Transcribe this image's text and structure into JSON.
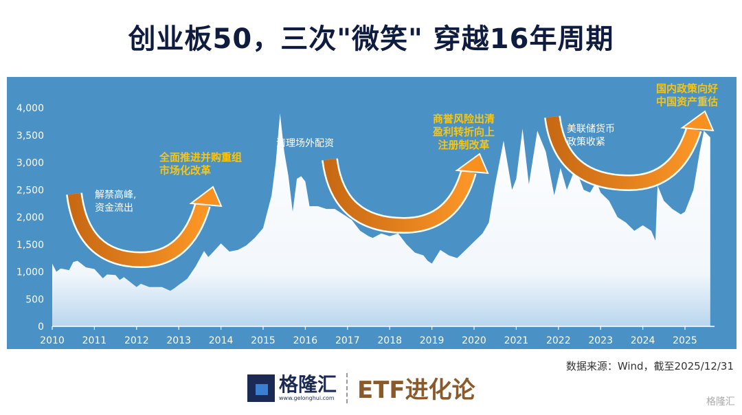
{
  "title": "创业板50，三次\"微笑\" 穿越16年周期",
  "chart_data": {
    "type": "area",
    "title": "创业板50，三次\"微笑\" 穿越16年周期",
    "xlabel": "",
    "ylabel": "",
    "xlim": [
      2010,
      2025.7
    ],
    "ylim": [
      0,
      4000
    ],
    "x_ticks": [
      "2010",
      "2011",
      "2012",
      "2013",
      "2014",
      "2015",
      "2016",
      "2017",
      "2018",
      "2019",
      "2020",
      "2021",
      "2022",
      "2023",
      "2024",
      "2025"
    ],
    "y_ticks": [
      "0",
      "500",
      "1,000",
      "1,500",
      "2,000",
      "2,500",
      "3,000",
      "3,500",
      "4,000"
    ],
    "grid": false,
    "colors": {
      "background": "#4a92c6",
      "area": "#ffffff",
      "arrow": "#f08a1c",
      "annotation_highlight": "#f5c518"
    },
    "x": [
      2010.0,
      2010.1,
      2010.2,
      2010.4,
      2010.5,
      2010.6,
      2010.8,
      2011.0,
      2011.2,
      2011.3,
      2011.5,
      2011.6,
      2011.7,
      2011.9,
      2012.0,
      2012.1,
      2012.3,
      2012.6,
      2012.8,
      2012.9,
      2013.0,
      2013.2,
      2013.4,
      2013.6,
      2013.7,
      2013.8,
      2014.0,
      2014.2,
      2014.4,
      2014.6,
      2014.8,
      2015.0,
      2015.2,
      2015.3,
      2015.4,
      2015.5,
      2015.6,
      2015.7,
      2015.8,
      2015.9,
      2016.0,
      2016.1,
      2016.3,
      2016.5,
      2016.7,
      2016.9,
      2017.1,
      2017.3,
      2017.5,
      2017.6,
      2017.8,
      2018.0,
      2018.2,
      2018.4,
      2018.6,
      2018.8,
      2018.9,
      2019.0,
      2019.2,
      2019.4,
      2019.6,
      2019.8,
      2020.0,
      2020.2,
      2020.35,
      2020.5,
      2020.7,
      2020.9,
      2021.0,
      2021.15,
      2021.3,
      2021.5,
      2021.7,
      2021.9,
      2022.05,
      2022.2,
      2022.4,
      2022.6,
      2022.75,
      2022.9,
      2023.0,
      2023.2,
      2023.4,
      2023.6,
      2023.8,
      2024.0,
      2024.2,
      2024.3,
      2024.35,
      2024.5,
      2024.7,
      2024.9,
      2025.0,
      2025.2,
      2025.35,
      2025.45,
      2025.6
    ],
    "values": [
      1150,
      1000,
      1060,
      1030,
      1180,
      1200,
      1080,
      1050,
      880,
      950,
      940,
      850,
      900,
      780,
      720,
      780,
      720,
      720,
      650,
      700,
      760,
      870,
      1100,
      1380,
      1270,
      1350,
      1520,
      1370,
      1400,
      1480,
      1620,
      1800,
      2400,
      3000,
      3900,
      3200,
      2750,
      2100,
      2700,
      2750,
      2650,
      2200,
      2200,
      2150,
      2150,
      2050,
      1950,
      1750,
      1650,
      1620,
      1700,
      1650,
      1700,
      1500,
      1350,
      1300,
      1200,
      1150,
      1400,
      1300,
      1250,
      1400,
      1550,
      1700,
      1900,
      2600,
      3400,
      2500,
      2700,
      3620,
      2600,
      3580,
      3200,
      2400,
      2900,
      2500,
      2900,
      2500,
      2450,
      2650,
      2450,
      2300,
      2000,
      1900,
      1750,
      1850,
      1750,
      1570,
      2580,
      2300,
      2150,
      2050,
      2100,
      2500,
      3200,
      3580,
      3460
    ],
    "annotations": [
      {
        "text_lines": [
          "解禁高峰,",
          "资金流出"
        ],
        "style": "normal"
      },
      {
        "text_lines": [
          "全面推进并购重组",
          "市场化改革"
        ],
        "style": "highlight"
      },
      {
        "text_lines": [
          "清理场外配资"
        ],
        "style": "normal"
      },
      {
        "text_lines": [
          "商誉风险出清",
          "盈利转折向上",
          "注册制改革"
        ],
        "style": "highlight"
      },
      {
        "text_lines": [
          "美联储货币",
          "政策收紧"
        ],
        "style": "normal"
      },
      {
        "text_lines": [
          "国内政策向好",
          "中国资产重估"
        ],
        "style": "highlight"
      }
    ]
  },
  "source": "数据来源：Wind，截至2025/12/31",
  "logo": {
    "brand": "格隆汇",
    "url": "www.gelonghui.com",
    "column": "ETF进化论"
  },
  "watermark": "格隆汇"
}
